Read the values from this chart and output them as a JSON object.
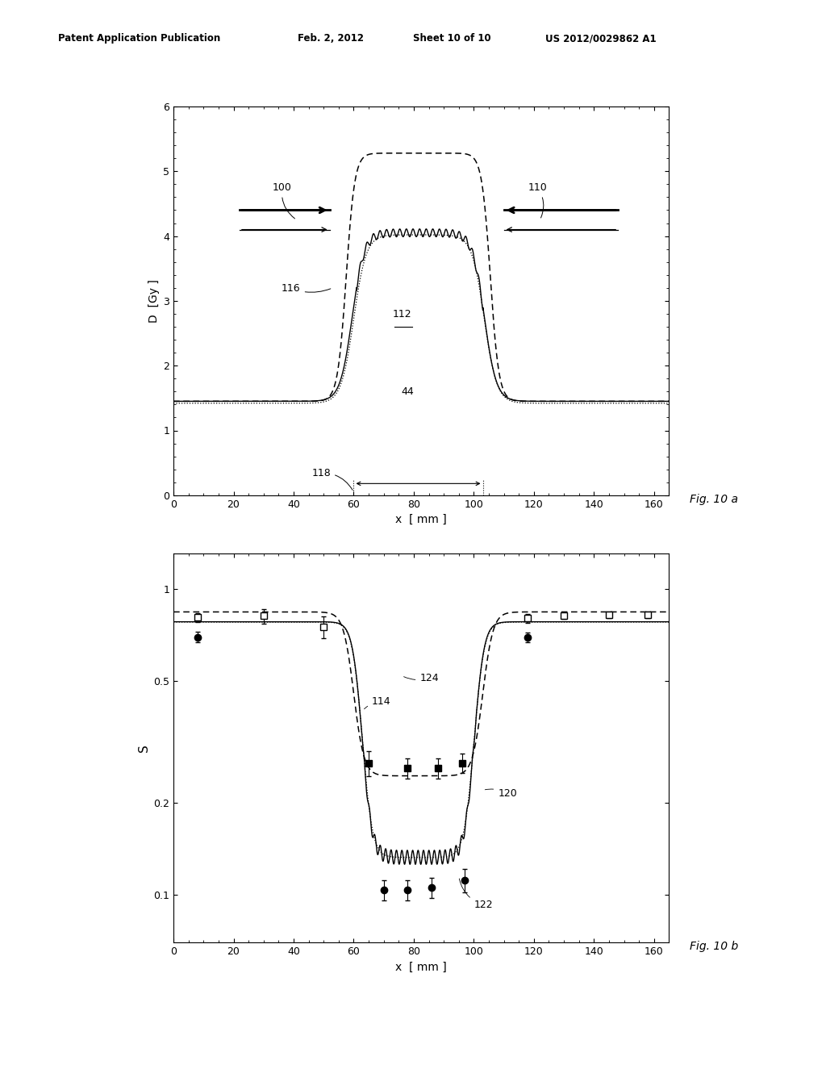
{
  "fig_width": 10.24,
  "fig_height": 13.2,
  "dpi": 100,
  "bg_color": "#ffffff",
  "header_text": "Patent Application Publication",
  "header_date": "Feb. 2, 2012",
  "header_sheet": "Sheet 10 of 10",
  "header_patent": "US 2012/0029862 A1",
  "plot_a": {
    "xlabel": "x  [ mm ]",
    "ylabel": "D  [Gy ]",
    "xlim": [
      0,
      165
    ],
    "ylim": [
      0,
      6
    ],
    "xticks": [
      0,
      20,
      40,
      60,
      80,
      100,
      120,
      140,
      160
    ],
    "yticks": [
      0,
      1,
      2,
      3,
      4,
      5,
      6
    ],
    "fig_label": "Fig. 10 a"
  },
  "plot_b": {
    "xlabel": "x  [ mm ]",
    "ylabel": "S",
    "xlim": [
      0,
      165
    ],
    "ylim": [
      0.07,
      1.3
    ],
    "yticks": [
      0.1,
      0.2,
      0.5,
      1.0
    ],
    "ytick_labels": [
      "0.1",
      "0.2",
      "0.5",
      "1"
    ],
    "xticks": [
      0,
      20,
      40,
      60,
      80,
      100,
      120,
      140,
      160
    ],
    "fig_label": "Fig. 10 b"
  }
}
